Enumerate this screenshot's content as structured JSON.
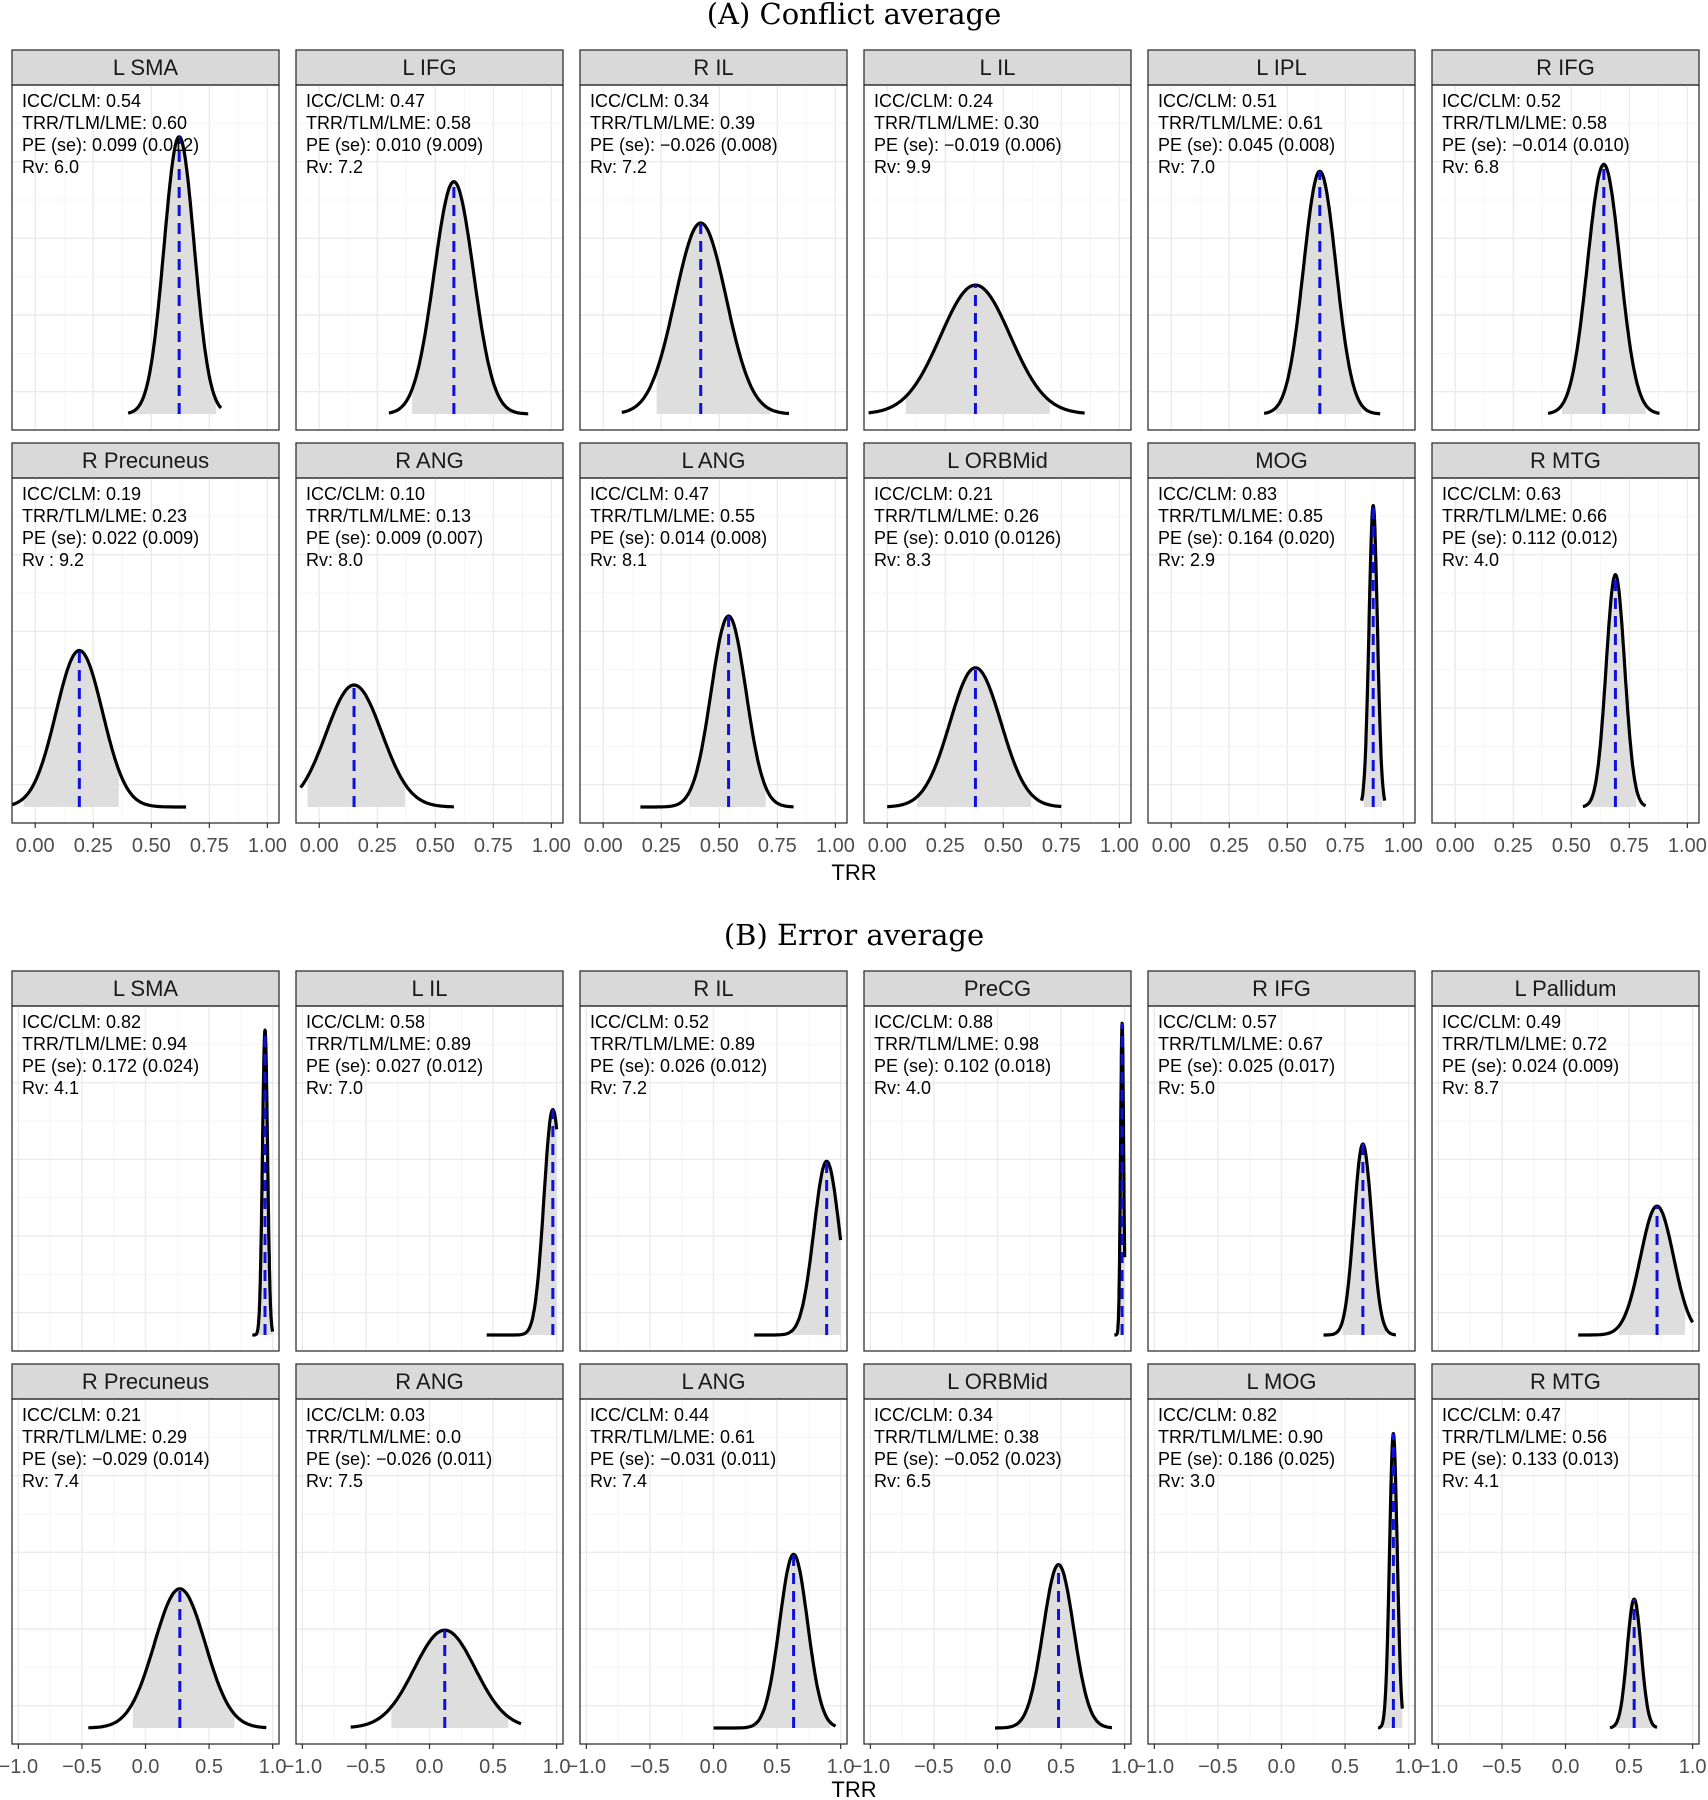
{
  "chart_data": [
    {
      "type": "area",
      "title": "(A) Conflict average",
      "xlabel": "TRR",
      "xlim": [
        -0.1,
        1.05
      ],
      "x_ticks": [
        "0.00",
        "0.25",
        "0.50",
        "0.75",
        "1.00"
      ],
      "x_tick_values": [
        0,
        0.25,
        0.5,
        0.75,
        1.0
      ],
      "grid": true,
      "panels": [
        {
          "label": "L SMA",
          "stats": [
            "ICC/CLM: 0.54",
            "TRR/TLM/LME: 0.60",
            "PE (se): 0.099 (0.012)",
            "Rv: 6.0"
          ],
          "mode": 0.62,
          "sd": 0.065,
          "range": [
            0.4,
            0.8
          ],
          "shade": [
            0.4,
            0.78
          ],
          "peak": 0.85
        },
        {
          "label": "L IFG",
          "stats": [
            "ICC/CLM: 0.47",
            "TRR/TLM/LME: 0.58",
            "PE (se): 0.010 (9.009)",
            "Rv: 7.2"
          ],
          "mode": 0.58,
          "sd": 0.085,
          "range": [
            0.3,
            0.9
          ],
          "shade": [
            0.4,
            0.85
          ],
          "peak": 0.72
        },
        {
          "label": "R IL",
          "stats": [
            "ICC/CLM: 0.34",
            "TRR/TLM/LME: 0.39",
            "PE (se): −0.026 (0.008)",
            "Rv: 7.2"
          ],
          "mode": 0.42,
          "sd": 0.11,
          "range": [
            0.08,
            0.8
          ],
          "shade": [
            0.23,
            0.72
          ],
          "peak": 0.6
        },
        {
          "label": "L IL",
          "stats": [
            "ICC/CLM: 0.24",
            "TRR/TLM/LME: 0.30",
            "PE (se): −0.019 (0.006)",
            "Rv: 9.9"
          ],
          "mode": 0.38,
          "sd": 0.15,
          "range": [
            -0.08,
            0.85
          ],
          "shade": [
            0.08,
            0.7
          ],
          "peak": 0.42
        },
        {
          "label": "L IPL",
          "stats": [
            "ICC/CLM: 0.51",
            "TRR/TLM/LME: 0.61",
            "PE (se): 0.045 (0.008)",
            "Rv: 7.0"
          ],
          "mode": 0.64,
          "sd": 0.07,
          "range": [
            0.4,
            0.9
          ],
          "shade": [
            0.45,
            0.82
          ],
          "peak": 0.75
        },
        {
          "label": "R IFG",
          "stats": [
            "ICC/CLM: 0.52",
            "TRR/TLM/LME: 0.58",
            "PE (se): −0.014 (0.010)",
            "Rv: 6.8"
          ],
          "mode": 0.64,
          "sd": 0.07,
          "range": [
            0.4,
            0.88
          ],
          "shade": [
            0.46,
            0.82
          ],
          "peak": 0.77
        },
        {
          "label": "R Precuneus",
          "stats": [
            "ICC/CLM: 0.19",
            "TRR/TLM/LME: 0.23",
            "PE (se): 0.022 (0.009)",
            "Rv : 9.2"
          ],
          "mode": 0.19,
          "sd": 0.1,
          "range": [
            -0.1,
            0.65
          ],
          "shade": [
            -0.05,
            0.36
          ],
          "peak": 0.5
        },
        {
          "label": "R ANG",
          "stats": [
            "ICC/CLM: 0.10",
            "TRR/TLM/LME: 0.13",
            "PE (se): 0.009 (0.007)",
            "Rv: 8.0"
          ],
          "mode": 0.15,
          "sd": 0.12,
          "range": [
            -0.08,
            0.58
          ],
          "shade": [
            -0.05,
            0.37
          ],
          "peak": 0.4
        },
        {
          "label": "L ANG",
          "stats": [
            "ICC/CLM: 0.47",
            "TRR/TLM/LME: 0.55",
            "PE (se): 0.014 (0.008)",
            "Rv: 8.1"
          ],
          "mode": 0.54,
          "sd": 0.075,
          "range": [
            0.16,
            0.82
          ],
          "shade": [
            0.37,
            0.7
          ],
          "peak": 0.6
        },
        {
          "label": "L ORBMid",
          "stats": [
            "ICC/CLM: 0.21",
            "TRR/TLM/LME: 0.26",
            "PE (se): 0.010 (0.0126)",
            "Rv: 8.3"
          ],
          "mode": 0.38,
          "sd": 0.11,
          "range": [
            0.0,
            0.75
          ],
          "shade": [
            0.13,
            0.62
          ],
          "peak": 0.45
        },
        {
          "label": "MOG",
          "stats": [
            "ICC/CLM: 0.83",
            "TRR/TLM/LME: 0.85",
            "PE (se): 0.164 (0.020)",
            "Rv: 2.9"
          ],
          "mode": 0.87,
          "sd": 0.018,
          "range": [
            0.82,
            0.92
          ],
          "shade": [
            0.83,
            0.91
          ],
          "peak": 0.92
        },
        {
          "label": "R MTG",
          "stats": [
            "ICC/CLM: 0.63",
            "TRR/TLM/LME: 0.66",
            "PE (se): 0.112 (0.012)",
            "Rv: 4.0"
          ],
          "mode": 0.69,
          "sd": 0.04,
          "range": [
            0.55,
            0.82
          ],
          "shade": [
            0.58,
            0.78
          ],
          "peak": 0.72
        }
      ]
    },
    {
      "type": "area",
      "title": "(B) Error average",
      "xlabel": "TRR",
      "xlim": [
        -1.05,
        1.05
      ],
      "x_ticks": [
        "−1.0",
        "−0.5",
        "0.0",
        "0.5",
        "1.0"
      ],
      "x_tick_values": [
        -1.0,
        -0.5,
        0,
        0.5,
        1.0
      ],
      "grid": true,
      "panels": [
        {
          "label": "L SMA",
          "stats": [
            "ICC/CLM: 0.82",
            "TRR/TLM/LME: 0.94",
            "PE (se): 0.172 (0.024)",
            "Rv: 4.1"
          ],
          "mode": 0.94,
          "sd": 0.02,
          "range": [
            0.84,
            1.0
          ],
          "shade": [
            0.88,
            1.0
          ],
          "peak": 0.93
        },
        {
          "label": "L IL",
          "stats": [
            "ICC/CLM: 0.58",
            "TRR/TLM/LME: 0.89",
            "PE (se): 0.027 (0.012)",
            "Rv: 7.0"
          ],
          "mode": 0.97,
          "sd": 0.07,
          "range": [
            0.45,
            1.0
          ],
          "shade": [
            0.75,
            1.0
          ],
          "peak": 0.7
        },
        {
          "label": "R IL",
          "stats": [
            "ICC/CLM: 0.52",
            "TRR/TLM/LME: 0.89",
            "PE (se): 0.026 (0.012)",
            "Rv: 7.2"
          ],
          "mode": 0.89,
          "sd": 0.1,
          "range": [
            0.32,
            1.0
          ],
          "shade": [
            0.62,
            1.0
          ],
          "peak": 0.55
        },
        {
          "label": "PreCG",
          "stats": [
            "ICC/CLM: 0.88",
            "TRR/TLM/LME: 0.98",
            "PE (se): 0.102 (0.018)",
            "Rv: 4.0"
          ],
          "mode": 0.98,
          "sd": 0.012,
          "range": [
            0.92,
            1.0
          ],
          "shade": [
            0.94,
            1.0
          ],
          "peak": 0.95
        },
        {
          "label": "R IFG",
          "stats": [
            "ICC/CLM: 0.57",
            "TRR/TLM/LME: 0.67",
            "PE (se): 0.025 (0.017)",
            "Rv: 5.0"
          ],
          "mode": 0.64,
          "sd": 0.07,
          "range": [
            0.33,
            0.9
          ],
          "shade": [
            0.48,
            0.82
          ],
          "peak": 0.6
        },
        {
          "label": "L Pallidum",
          "stats": [
            "ICC/CLM: 0.49",
            "TRR/TLM/LME: 0.72",
            "PE (se): 0.024 (0.009)",
            "Rv: 8.7"
          ],
          "mode": 0.72,
          "sd": 0.13,
          "range": [
            0.1,
            1.0
          ],
          "shade": [
            0.42,
            0.94
          ],
          "peak": 0.42
        },
        {
          "label": "R Precuneus",
          "stats": [
            "ICC/CLM: 0.21",
            "TRR/TLM/LME: 0.29",
            "PE (se): −0.029 (0.014)",
            "Rv: 7.4"
          ],
          "mode": 0.27,
          "sd": 0.2,
          "range": [
            -0.45,
            0.95
          ],
          "shade": [
            -0.1,
            0.7
          ],
          "peak": 0.45
        },
        {
          "label": "R ANG",
          "stats": [
            "ICC/CLM: 0.03",
            "TRR/TLM/LME: 0.0",
            "PE (se): −0.026 (0.011)",
            "Rv: 7.5"
          ],
          "mode": 0.12,
          "sd": 0.24,
          "range": [
            -0.62,
            0.72
          ],
          "shade": [
            -0.3,
            0.62
          ],
          "peak": 0.33
        },
        {
          "label": "L ANG",
          "stats": [
            "ICC/CLM: 0.44",
            "TRR/TLM/LME: 0.61",
            "PE (se): −0.031 (0.011)",
            "Rv: 7.4"
          ],
          "mode": 0.63,
          "sd": 0.11,
          "range": [
            0.0,
            0.96
          ],
          "shade": [
            0.3,
            0.92
          ],
          "peak": 0.55
        },
        {
          "label": "L ORBMid",
          "stats": [
            "ICC/CLM: 0.34",
            "TRR/TLM/LME: 0.38",
            "PE (se): −0.052 (0.023)",
            "Rv: 6.5"
          ],
          "mode": 0.48,
          "sd": 0.12,
          "range": [
            -0.02,
            0.9
          ],
          "shade": [
            0.15,
            0.85
          ],
          "peak": 0.52
        },
        {
          "label": "L MOG",
          "stats": [
            "ICC/CLM: 0.82",
            "TRR/TLM/LME: 0.90",
            "PE (se): 0.186 (0.025)",
            "Rv: 3.0"
          ],
          "mode": 0.88,
          "sd": 0.03,
          "range": [
            0.76,
            0.95
          ],
          "shade": [
            0.8,
            0.95
          ],
          "peak": 0.9
        },
        {
          "label": "R MTG",
          "stats": [
            "ICC/CLM: 0.47",
            "TRR/TLM/LME: 0.56",
            "PE (se): 0.133 (0.013)",
            "Rv: 4.1"
          ],
          "mode": 0.54,
          "sd": 0.055,
          "range": [
            0.35,
            0.72
          ],
          "shade": [
            0.38,
            0.7
          ],
          "peak": 0.42
        }
      ]
    }
  ]
}
